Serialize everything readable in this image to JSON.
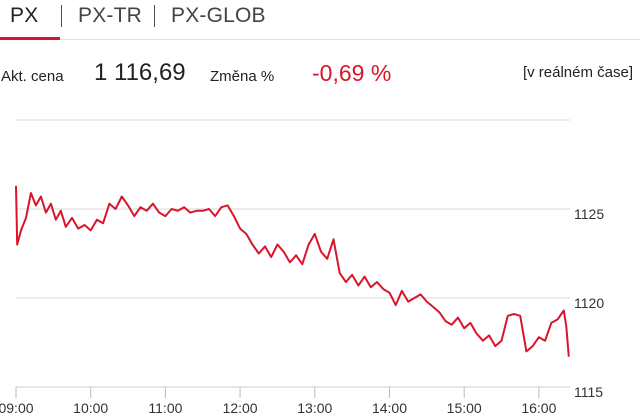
{
  "tabs": [
    {
      "label": "PX",
      "active": true
    },
    {
      "label": "PX-TR",
      "active": false
    },
    {
      "label": "PX-GLOB",
      "active": false
    }
  ],
  "quote": {
    "price_label": "Akt. cena",
    "price": "1 116,69",
    "change_label": "Změna %",
    "change": "-0,69 %",
    "realtime": "[v reálném čase]"
  },
  "colors": {
    "accent": "#d8162b",
    "negative": "#d8162b",
    "grid": "#d9d9d9",
    "text": "#222222"
  },
  "chart_data": {
    "type": "line",
    "title": "",
    "xlabel": "",
    "ylabel": "",
    "x_ticks": [
      "09:00",
      "10:00",
      "11:00",
      "12:00",
      "13:00",
      "14:00",
      "15:00",
      "16:00"
    ],
    "y_ticks": [
      1115,
      1120,
      1125
    ],
    "ylim": [
      1115,
      1130
    ],
    "xlim": [
      "09:00",
      "16:25"
    ],
    "grid": true,
    "legend": "none",
    "series": [
      {
        "color": "#d8162b",
        "points": [
          [
            "09:00",
            1126.3
          ],
          [
            "09:01",
            1123.0
          ],
          [
            "09:04",
            1123.8
          ],
          [
            "09:08",
            1124.5
          ],
          [
            "09:12",
            1125.9
          ],
          [
            "09:16",
            1125.2
          ],
          [
            "09:20",
            1125.7
          ],
          [
            "09:24",
            1124.8
          ],
          [
            "09:28",
            1125.3
          ],
          [
            "09:32",
            1124.4
          ],
          [
            "09:36",
            1124.9
          ],
          [
            "09:40",
            1124.0
          ],
          [
            "09:45",
            1124.5
          ],
          [
            "09:50",
            1123.9
          ],
          [
            "09:55",
            1124.1
          ],
          [
            "10:00",
            1123.8
          ],
          [
            "10:05",
            1124.4
          ],
          [
            "10:10",
            1124.2
          ],
          [
            "10:15",
            1125.3
          ],
          [
            "10:20",
            1125.0
          ],
          [
            "10:25",
            1125.7
          ],
          [
            "10:30",
            1125.2
          ],
          [
            "10:35",
            1124.6
          ],
          [
            "10:40",
            1125.1
          ],
          [
            "10:45",
            1124.9
          ],
          [
            "10:50",
            1125.3
          ],
          [
            "10:55",
            1124.8
          ],
          [
            "11:00",
            1124.6
          ],
          [
            "11:05",
            1125.0
          ],
          [
            "11:10",
            1124.9
          ],
          [
            "11:15",
            1125.1
          ],
          [
            "11:20",
            1124.8
          ],
          [
            "11:25",
            1124.9
          ],
          [
            "11:30",
            1124.9
          ],
          [
            "11:35",
            1125.0
          ],
          [
            "11:40",
            1124.6
          ],
          [
            "11:45",
            1125.1
          ],
          [
            "11:50",
            1125.2
          ],
          [
            "11:55",
            1124.6
          ],
          [
            "12:00",
            1123.9
          ],
          [
            "12:05",
            1123.6
          ],
          [
            "12:10",
            1123.0
          ],
          [
            "12:15",
            1122.5
          ],
          [
            "12:20",
            1122.9
          ],
          [
            "12:25",
            1122.3
          ],
          [
            "12:30",
            1123.0
          ],
          [
            "12:35",
            1122.6
          ],
          [
            "12:40",
            1122.0
          ],
          [
            "12:45",
            1122.4
          ],
          [
            "12:50",
            1121.9
          ],
          [
            "12:55",
            1123.0
          ],
          [
            "13:00",
            1123.6
          ],
          [
            "13:05",
            1122.6
          ],
          [
            "13:10",
            1122.2
          ],
          [
            "13:15",
            1123.3
          ],
          [
            "13:20",
            1121.4
          ],
          [
            "13:25",
            1120.9
          ],
          [
            "13:30",
            1121.3
          ],
          [
            "13:35",
            1120.7
          ],
          [
            "13:40",
            1121.2
          ],
          [
            "13:45",
            1120.6
          ],
          [
            "13:50",
            1120.9
          ],
          [
            "13:55",
            1120.5
          ],
          [
            "14:00",
            1120.3
          ],
          [
            "14:05",
            1119.6
          ],
          [
            "14:10",
            1120.4
          ],
          [
            "14:15",
            1119.8
          ],
          [
            "14:20",
            1120.0
          ],
          [
            "14:25",
            1120.2
          ],
          [
            "14:30",
            1119.8
          ],
          [
            "14:35",
            1119.5
          ],
          [
            "14:40",
            1119.2
          ],
          [
            "14:45",
            1118.7
          ],
          [
            "14:50",
            1118.5
          ],
          [
            "14:55",
            1118.9
          ],
          [
            "15:00",
            1118.3
          ],
          [
            "15:05",
            1118.6
          ],
          [
            "15:10",
            1118.0
          ],
          [
            "15:15",
            1117.6
          ],
          [
            "15:20",
            1117.9
          ],
          [
            "15:25",
            1117.3
          ],
          [
            "15:30",
            1117.6
          ],
          [
            "15:35",
            1119.0
          ],
          [
            "15:40",
            1119.1
          ],
          [
            "15:45",
            1119.0
          ],
          [
            "15:50",
            1117.0
          ],
          [
            "15:55",
            1117.3
          ],
          [
            "16:00",
            1117.8
          ],
          [
            "16:05",
            1117.6
          ],
          [
            "16:10",
            1118.6
          ],
          [
            "16:15",
            1118.8
          ],
          [
            "16:20",
            1119.3
          ],
          [
            "16:22",
            1118.4
          ],
          [
            "16:24",
            1116.7
          ]
        ]
      }
    ]
  }
}
